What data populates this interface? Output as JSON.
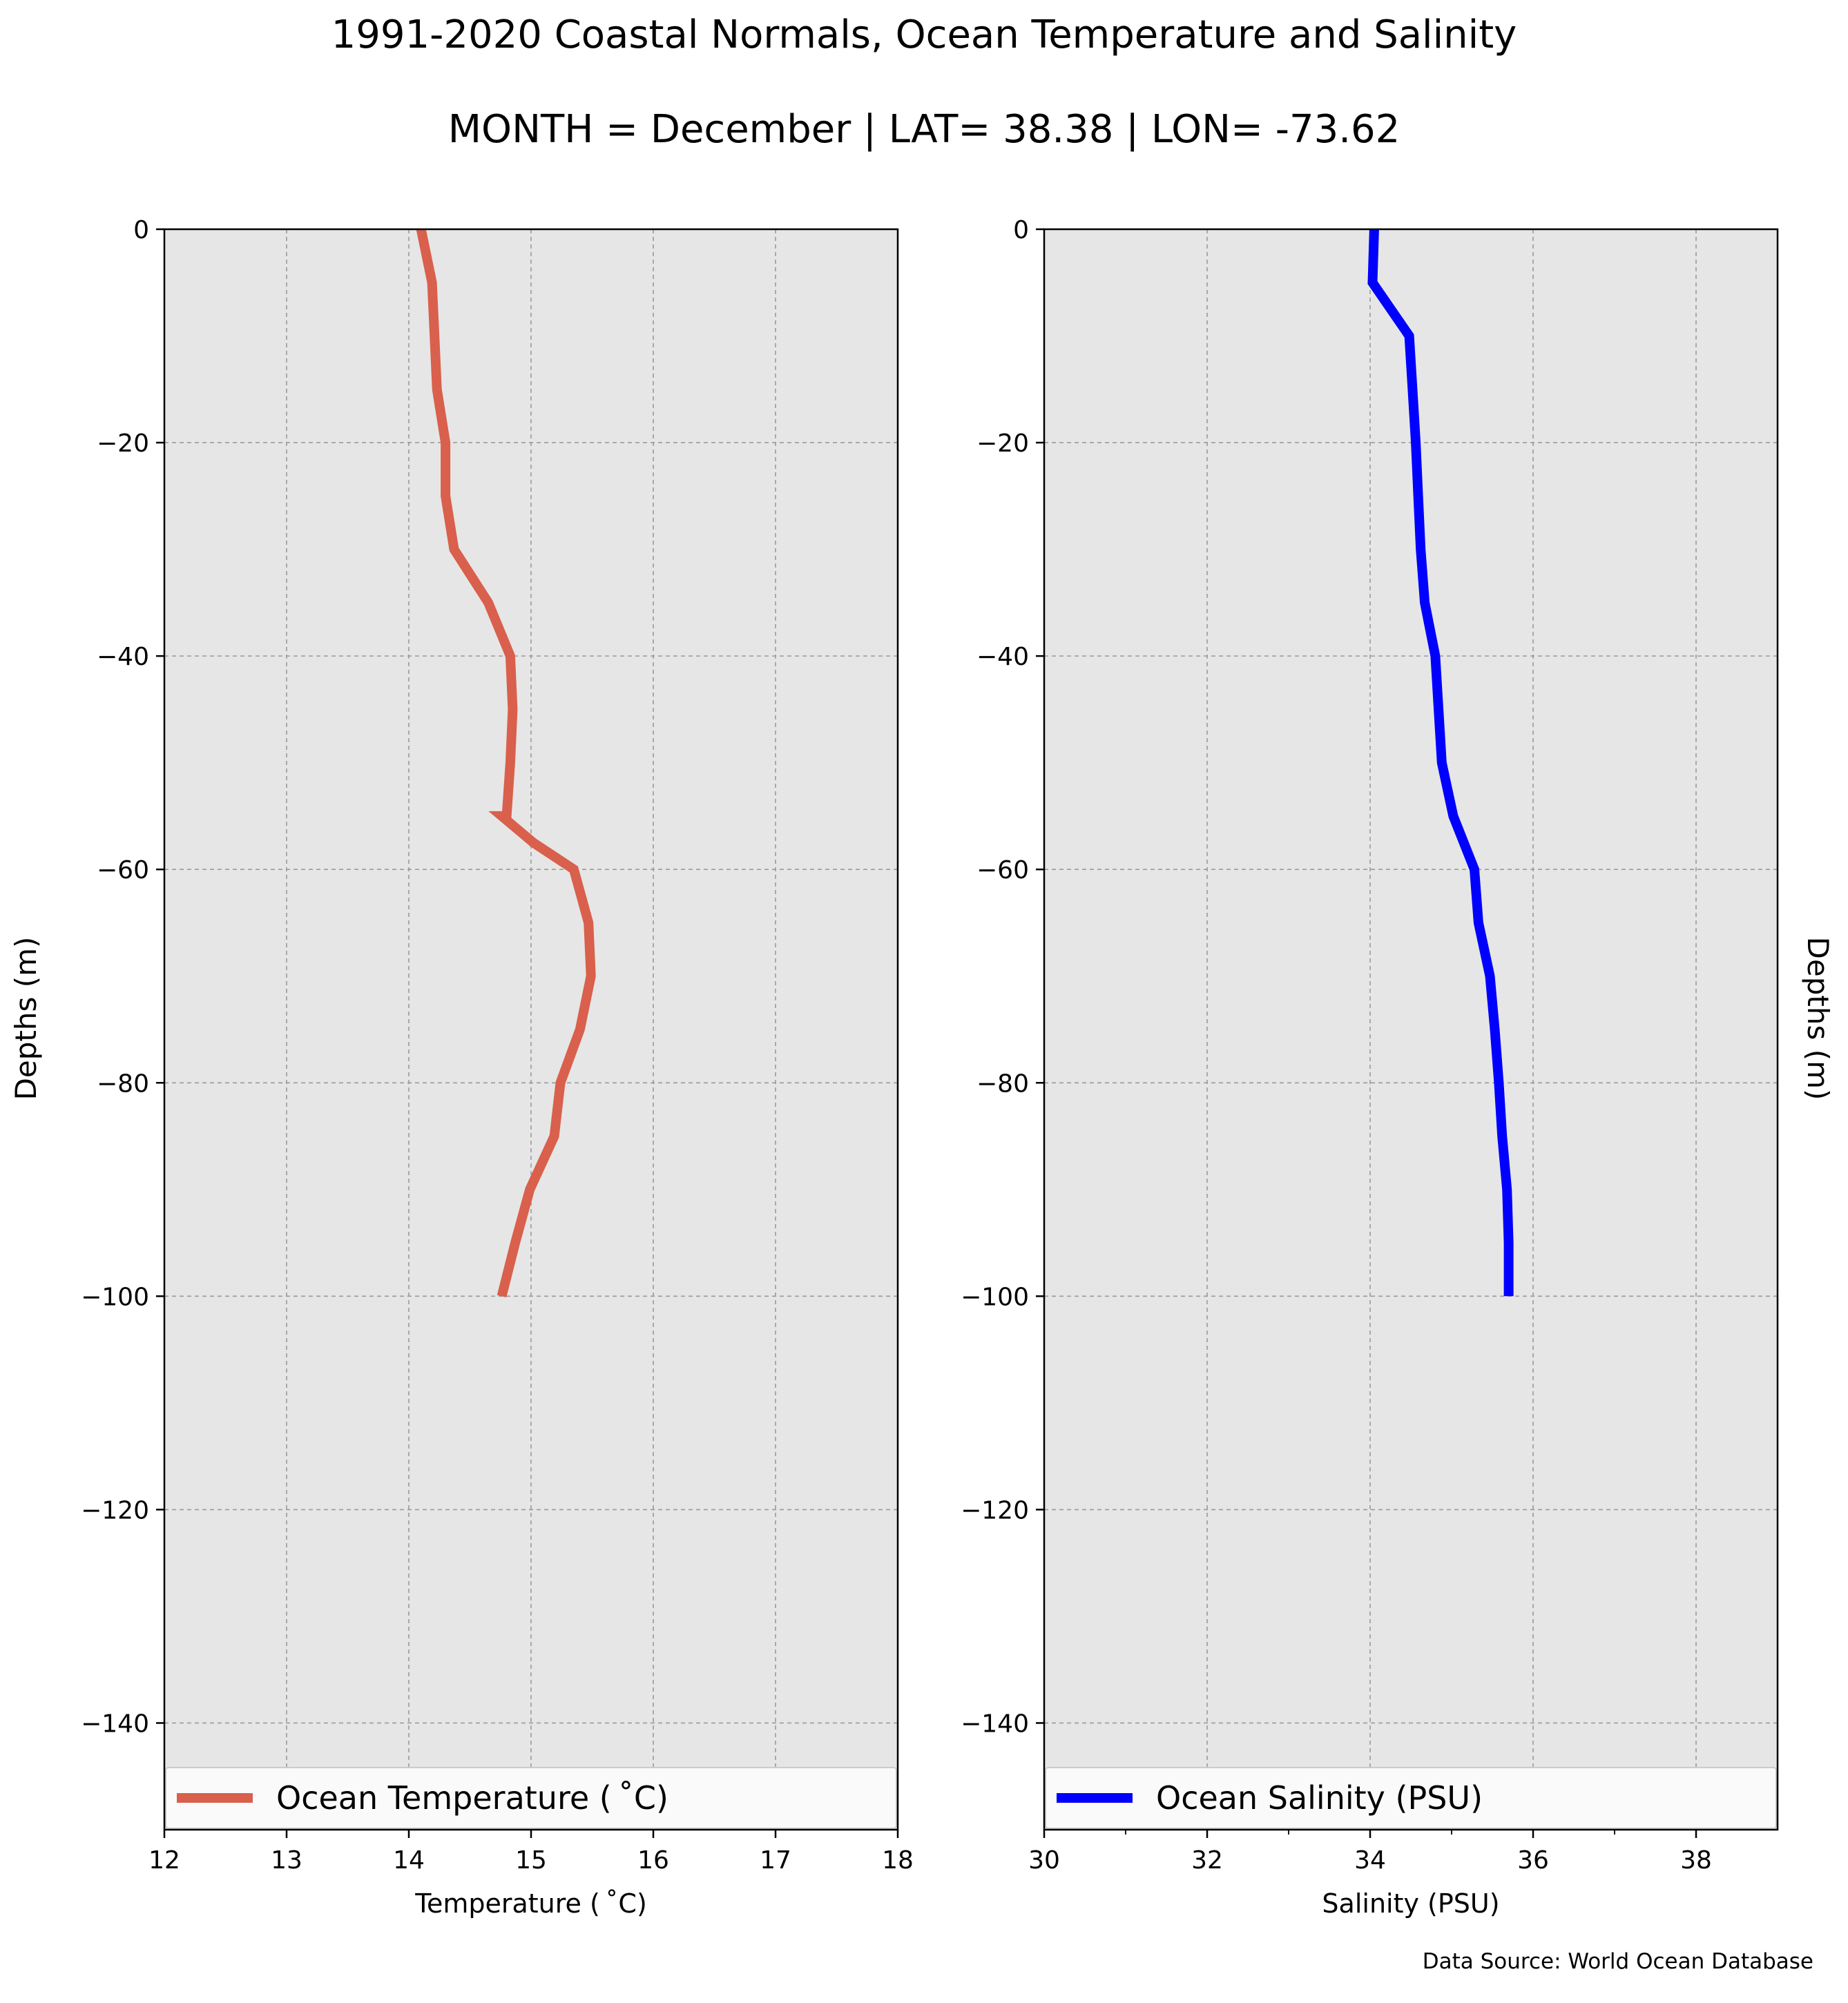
{
  "title": "1991-2020 Coastal Normals, Ocean Temperature and Salinity",
  "subtitle": "MONTH = December | LAT= 38.38 | LON= -73.62",
  "source_note": "Data Source: World Ocean Database",
  "colors": {
    "temperature_line": "#d9604c",
    "salinity_line": "#0000ff",
    "plot_background": "#e6e6e6",
    "grid": "#9a9a9a"
  },
  "chart_data": [
    {
      "type": "line",
      "xlabel": "Temperature ($^\\circ$C)",
      "xlabel_display": "Temperature ( ˚C)",
      "ylabel": "Depths (m)",
      "xlim": [
        12,
        18
      ],
      "ylim": [
        -150,
        0
      ],
      "xticks": [
        12,
        13,
        14,
        15,
        16,
        17,
        18
      ],
      "yticks": [
        0,
        -20,
        -40,
        -60,
        -80,
        -100,
        -120,
        -140
      ],
      "ytick_labels": [
        "0",
        "−20",
        "−40",
        "−60",
        "−80",
        "−100",
        "−120",
        "−140"
      ],
      "grid": true,
      "legend_position": "bottom",
      "series": [
        {
          "name": "Ocean Temperature ( ˚C)",
          "x": [
            14.1,
            14.19,
            14.21,
            14.23,
            14.3,
            14.3,
            14.37,
            14.65,
            14.83,
            14.85,
            14.83,
            14.8,
            14.76,
            15.02,
            15.35,
            15.47,
            15.49,
            15.4,
            15.24,
            15.19,
            14.99,
            14.87,
            14.76
          ],
          "y": [
            0,
            -5,
            -10,
            -15,
            -20,
            -25,
            -30,
            -35,
            -40,
            -45,
            -50,
            -55,
            -55,
            -57.5,
            -60,
            -65,
            -70,
            -75,
            -80,
            -85,
            -90,
            -95,
            -100
          ]
        }
      ]
    },
    {
      "type": "line",
      "xlabel": "Salinity (PSU)",
      "ylabel": "Depths (m)",
      "xlim": [
        30,
        39
      ],
      "ylim": [
        -150,
        0
      ],
      "xticks": [
        30,
        32,
        34,
        36,
        38
      ],
      "yticks": [
        0,
        -20,
        -40,
        -60,
        -80,
        -100,
        -120,
        -140
      ],
      "ytick_labels": [
        "0",
        "−20",
        "−40",
        "−60",
        "−80",
        "−100",
        "−120",
        "−140"
      ],
      "grid": true,
      "legend_position": "bottom",
      "series": [
        {
          "name": "Ocean Salinity (PSU)",
          "x": [
            34.05,
            34.03,
            34.48,
            34.52,
            34.56,
            34.59,
            34.62,
            34.67,
            34.8,
            34.84,
            34.88,
            35.02,
            35.28,
            35.33,
            35.47,
            35.53,
            35.58,
            35.62,
            35.68,
            35.7,
            35.7
          ],
          "y": [
            0,
            -5,
            -10,
            -15,
            -20,
            -25,
            -30,
            -35,
            -40,
            -45,
            -50,
            -55,
            -60,
            -65,
            -70,
            -75,
            -80,
            -85,
            -90,
            -95,
            -100
          ]
        }
      ]
    }
  ]
}
